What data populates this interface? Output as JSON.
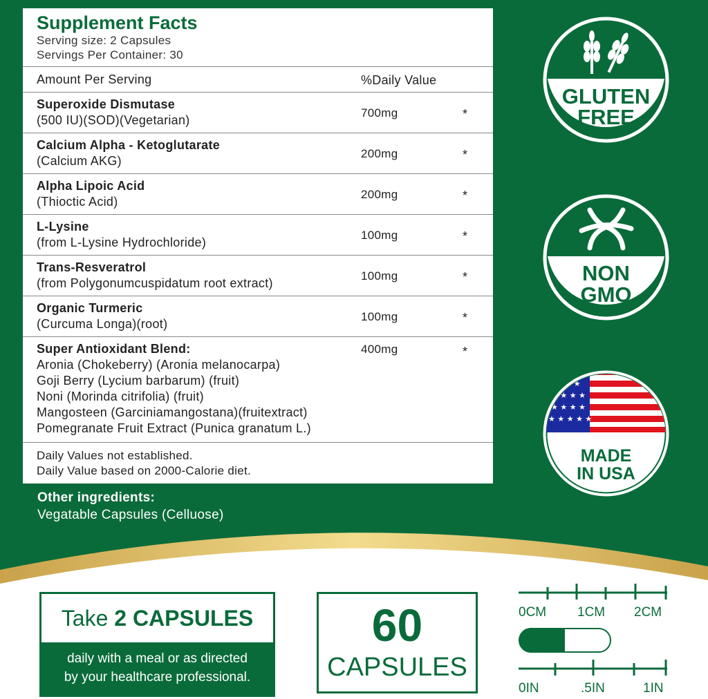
{
  "colors": {
    "green": "#0a6b3a",
    "gold": "#d4b25c"
  },
  "facts": {
    "title": "Supplement Facts",
    "serving_size": "Serving size: 2 Capsules",
    "servings_per_container": "Servings Per Container: 30",
    "amount_header": "Amount Per Serving",
    "dv_header": "%Daily Value",
    "ingredients": [
      {
        "name": "Superoxide Dismutase",
        "detail": "(500 IU)(SOD)(Vegetarian)",
        "amount": "700mg",
        "dv": "*"
      },
      {
        "name": "Calcium Alpha - Ketoglutarate",
        "detail": "(Calcium AKG)",
        "amount": "200mg",
        "dv": "*"
      },
      {
        "name": "Alpha Lipoic Acid",
        "detail": "(Thioctic Acid)",
        "amount": "200mg",
        "dv": "*"
      },
      {
        "name": "L-Lysine",
        "detail": "(from L-Lysine Hydrochloride)",
        "amount": "100mg",
        "dv": "*"
      },
      {
        "name": "Trans-Resveratrol",
        "detail": "(from Polygonumcuspidatum root extract)",
        "amount": "100mg",
        "dv": "*"
      },
      {
        "name": "Organic Turmeric",
        "detail": "(Curcuma Longa)(root)",
        "amount": "100mg",
        "dv": "*"
      }
    ],
    "blend": {
      "name": "Super Antioxidant Blend:",
      "amount": "400mg",
      "dv": "*",
      "items": [
        "Aronia (Chokeberry) (Aronia melanocarpa)",
        "Goji Berry (Lycium barbarum) (fruit)",
        "Noni  (Morinda citrifolia) (fruit)",
        "Mangosteen (Garciniamangostana)(fruitextract)",
        "Pomegranate Fruit Extract (Punica granatum L.)"
      ]
    },
    "footnotes": [
      "Daily Values not established.",
      "Daily Value based on 2000-Calorie diet."
    ]
  },
  "other": {
    "label": "Other ingredients:",
    "value": "Vegatable Capsules (Celluose)"
  },
  "badges": [
    {
      "icon": "wheat-icon",
      "line1": "GLUTEN",
      "line2": "FREE"
    },
    {
      "icon": "dna-icon",
      "line1": "NON",
      "line2": "GMO"
    },
    {
      "icon": "us-flag-icon",
      "line1": "MADE",
      "line2": "IN USA"
    }
  ],
  "dosage": {
    "take": "Take ",
    "bold": "2 CAPSULES",
    "line1": "daily with a meal or as directed",
    "line2": "by your healthcare professional."
  },
  "count": {
    "number": "60",
    "unit": "CAPSULES"
  },
  "ruler": {
    "cm": [
      "0CM",
      "1CM",
      "2CM"
    ],
    "inch": [
      "0IN",
      ".5IN",
      "1IN"
    ]
  }
}
